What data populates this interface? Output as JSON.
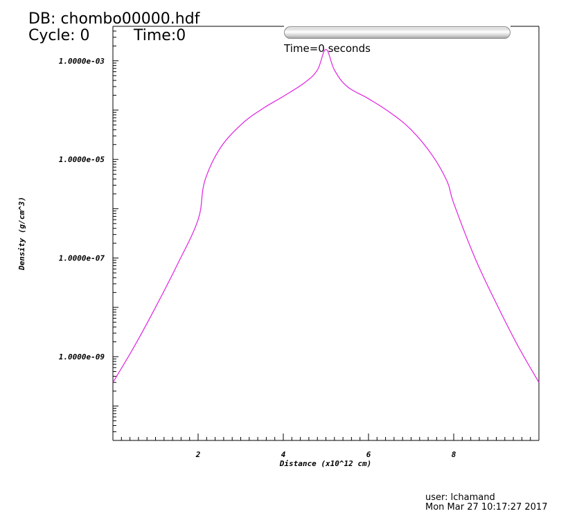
{
  "header": {
    "db_title": "DB: chombo00000.hdf",
    "cycle": "Cycle: 0",
    "time": "Time:0",
    "time_seconds": "Time=0 seconds"
  },
  "footer": {
    "user": "user: lchamand",
    "date": "Mon Mar 27 10:17:27 2017"
  },
  "colors": {
    "series": "#e020e0",
    "axis": "#000000"
  },
  "chart_data": {
    "type": "line",
    "title": "",
    "xlabel": "Distance (x10^12 cm)",
    "ylabel": "Density (g/cm^3)",
    "xlim": [
      0,
      10
    ],
    "ylim": [
      2e-11,
      0.005
    ],
    "yscale": "log",
    "grid": false,
    "x_ticks": [
      2,
      4,
      6,
      8
    ],
    "x_tick_labels": [
      "2",
      "4",
      "6",
      "8"
    ],
    "y_ticks": [
      1e-09,
      1e-07,
      1e-05,
      0.001
    ],
    "y_tick_labels": [
      "1.0000e-09",
      "1.0000e-07",
      "1.0000e-05",
      "1.0000e-03"
    ],
    "series": [
      {
        "name": "",
        "x": [
          0.0,
          0.5,
          1.0,
          1.5,
          2.0,
          2.15,
          2.5,
          3.0,
          3.5,
          4.0,
          4.5,
          4.8,
          5.0,
          5.2,
          5.5,
          6.0,
          6.5,
          7.0,
          7.5,
          7.85,
          8.0,
          8.5,
          9.0,
          9.5,
          10.0
        ],
        "y": [
          3e-10,
          1.6e-09,
          1e-08,
          7e-08,
          6e-07,
          3.5e-06,
          1.6e-05,
          5e-05,
          0.000105,
          0.00019,
          0.00036,
          0.00065,
          0.0017,
          0.00065,
          0.0003,
          0.00017,
          9e-05,
          4e-05,
          1.2e-05,
          3.5e-06,
          1.3e-06,
          1e-07,
          1.2e-08,
          1.7e-09,
          3e-10
        ]
      }
    ]
  }
}
